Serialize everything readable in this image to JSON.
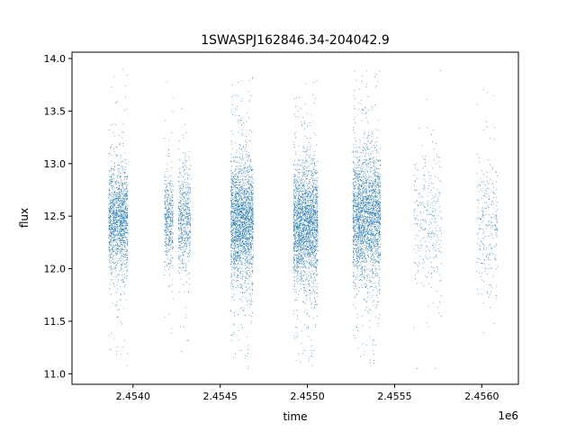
{
  "chart_data": {
    "type": "scatter",
    "title": "1SWASPJ162846.34-204042.9",
    "xlabel": "time",
    "ylabel": "flux",
    "x_offset_label": "1e6",
    "xlim": [
      2.45365,
      2.45621
    ],
    "ylim": [
      10.9,
      14.06
    ],
    "x_ticks": [
      {
        "value": 2.454,
        "label": "2.4540"
      },
      {
        "value": 2.4545,
        "label": "2.4545"
      },
      {
        "value": 2.455,
        "label": "2.4550"
      },
      {
        "value": 2.4555,
        "label": "2.4555"
      },
      {
        "value": 2.456,
        "label": "2.4560"
      }
    ],
    "y_ticks": [
      {
        "value": 11.0,
        "label": "11.0"
      },
      {
        "value": 11.5,
        "label": "11.5"
      },
      {
        "value": 12.0,
        "label": "12.0"
      },
      {
        "value": 12.5,
        "label": "12.5"
      },
      {
        "value": 13.0,
        "label": "13.0"
      },
      {
        "value": 13.5,
        "label": "13.5"
      },
      {
        "value": 14.0,
        "label": "14.0"
      }
    ],
    "grid": false,
    "legend": "none",
    "marker_color": "#1f77b4",
    "series": [
      {
        "clusters": [
          {
            "x_start": 2.45386,
            "x_end": 2.45397,
            "center": 12.46,
            "spread": 0.24,
            "count": 1400,
            "min": 11.05,
            "max": 13.92
          },
          {
            "x_start": 2.45418,
            "x_end": 2.45423,
            "center": 12.45,
            "spread": 0.2,
            "count": 420,
            "min": 11.3,
            "max": 13.82
          },
          {
            "x_start": 2.45426,
            "x_end": 2.45433,
            "center": 12.47,
            "spread": 0.23,
            "count": 560,
            "min": 11.15,
            "max": 13.82
          },
          {
            "x_start": 2.45456,
            "x_end": 2.45469,
            "center": 12.45,
            "spread": 0.27,
            "count": 2100,
            "min": 11.05,
            "max": 13.82
          },
          {
            "x_start": 2.45492,
            "x_end": 2.45506,
            "center": 12.42,
            "spread": 0.27,
            "count": 2200,
            "min": 11.05,
            "max": 13.8
          },
          {
            "x_start": 2.45526,
            "x_end": 2.45542,
            "center": 12.5,
            "spread": 0.29,
            "count": 2300,
            "min": 11.1,
            "max": 13.88
          },
          {
            "x_start": 2.45561,
            "x_end": 2.45577,
            "center": 12.45,
            "spread": 0.32,
            "count": 300,
            "min": 11.05,
            "max": 13.9
          },
          {
            "x_start": 2.45597,
            "x_end": 2.45609,
            "center": 12.38,
            "spread": 0.3,
            "count": 260,
            "min": 11.3,
            "max": 13.88
          }
        ]
      }
    ]
  }
}
